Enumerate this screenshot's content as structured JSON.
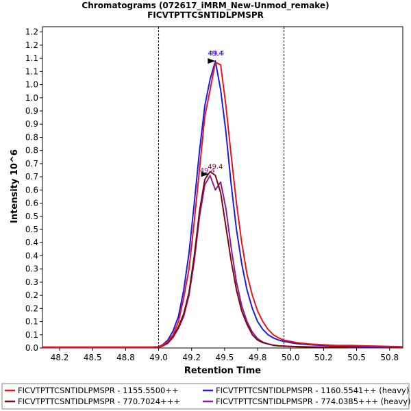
{
  "chart_data": {
    "type": "line",
    "title": "Chromatograms (072617_iMRM_New-Unmod_remake)",
    "subtitle": "FICVTPTTCSNTIDLPMSPR",
    "xlabel": "Retention Time",
    "ylabel": "Intensity 10^6",
    "xlim": [
      48.07,
      50.8
    ],
    "ylim": [
      0,
      1.22
    ],
    "x_ticks": [
      "48.2",
      "48.5",
      "48.8",
      "49.0",
      "49.2",
      "49.5",
      "49.8",
      "50.0",
      "50.2",
      "50.5",
      "50.8"
    ],
    "x_tick_values": [
      48.2,
      48.45,
      48.7,
      48.95,
      49.2,
      49.45,
      49.7,
      49.95,
      50.2,
      50.45,
      50.7
    ],
    "y_ticks": [
      "0.0",
      "0.1",
      "0.1",
      "0.2",
      "0.2",
      "0.3",
      "0.3",
      "0.4",
      "0.4",
      "0.5",
      "0.5",
      "0.6",
      "0.6",
      "0.7",
      "0.7",
      "0.8",
      "0.8",
      "0.9",
      "0.9",
      "1.0",
      "1.0",
      "1.1",
      "1.1",
      "1.2",
      "1.2"
    ],
    "y_tick_values": [
      0,
      0.05,
      0.1,
      0.15,
      0.2,
      0.25,
      0.3,
      0.35,
      0.4,
      0.45,
      0.5,
      0.55,
      0.6,
      0.65,
      0.7,
      0.75,
      0.8,
      0.85,
      0.9,
      0.95,
      1.0,
      1.05,
      1.1,
      1.15,
      1.2
    ],
    "boundaries": [
      48.95,
      49.9
    ],
    "legend_position": "bottom",
    "series": [
      {
        "name": "FICVTPTTCSNTIDLPMSPR - 1155.5500++",
        "color": "#e8141c",
        "x": [
          48.07,
          48.9,
          48.95,
          48.98,
          49.02,
          49.06,
          49.1,
          49.14,
          49.18,
          49.22,
          49.26,
          49.3,
          49.34,
          49.38,
          49.42,
          49.46,
          49.5,
          49.54,
          49.58,
          49.62,
          49.66,
          49.7,
          49.74,
          49.78,
          49.82,
          49.86,
          49.9,
          49.95,
          50.0,
          50.1,
          50.2,
          50.3,
          50.4,
          50.5,
          50.6,
          50.7,
          50.8
        ],
        "y": [
          0.003,
          0.003,
          0.004,
          0.01,
          0.025,
          0.05,
          0.1,
          0.19,
          0.3,
          0.48,
          0.68,
          0.88,
          0.98,
          1.085,
          1.075,
          0.92,
          0.73,
          0.55,
          0.4,
          0.28,
          0.2,
          0.14,
          0.1,
          0.07,
          0.05,
          0.038,
          0.03,
          0.025,
          0.02,
          0.015,
          0.012,
          0.01,
          0.01,
          0.008,
          0.007,
          0.006,
          0.005
        ]
      },
      {
        "name": "FICVTPTTCSNTIDLPMSPR - 1160.5541++ (heavy)",
        "color": "#1c1cdc",
        "x": [
          48.07,
          48.9,
          48.95,
          48.98,
          49.02,
          49.06,
          49.1,
          49.14,
          49.18,
          49.22,
          49.26,
          49.3,
          49.34,
          49.38,
          49.42,
          49.46,
          49.5,
          49.54,
          49.58,
          49.62,
          49.66,
          49.7,
          49.74,
          49.78,
          49.82,
          49.86,
          49.9,
          49.95,
          50.0,
          50.1,
          50.2,
          50.3,
          50.4,
          50.5,
          50.6,
          50.7,
          50.8
        ],
        "y": [
          0.003,
          0.003,
          0.005,
          0.012,
          0.03,
          0.065,
          0.12,
          0.22,
          0.36,
          0.55,
          0.75,
          0.92,
          1.02,
          1.09,
          0.98,
          0.82,
          0.62,
          0.45,
          0.32,
          0.22,
          0.15,
          0.1,
          0.07,
          0.05,
          0.038,
          0.03,
          0.025,
          0.02,
          0.016,
          0.012,
          0.01,
          0.008,
          0.007,
          0.006,
          0.005,
          0.004,
          0.004
        ]
      },
      {
        "name": "FICVTPTTCSNTIDLPMSPR - 770.7024+++",
        "color": "#7a0a0a",
        "x": [
          48.07,
          48.9,
          48.95,
          48.98,
          49.02,
          49.06,
          49.1,
          49.14,
          49.18,
          49.22,
          49.26,
          49.3,
          49.34,
          49.38,
          49.42,
          49.46,
          49.5,
          49.54,
          49.58,
          49.62,
          49.66,
          49.7,
          49.74,
          49.78,
          49.82,
          49.86,
          49.9,
          49.95,
          50.0,
          50.1,
          50.2,
          50.3,
          50.4,
          50.5,
          50.6,
          50.7,
          50.8
        ],
        "y": [
          0.002,
          0.002,
          0.003,
          0.008,
          0.02,
          0.045,
          0.08,
          0.13,
          0.21,
          0.35,
          0.52,
          0.64,
          0.67,
          0.655,
          0.59,
          0.46,
          0.33,
          0.22,
          0.14,
          0.09,
          0.05,
          0.03,
          0.02,
          0.015,
          0.01,
          0.008,
          0.007,
          0.006,
          0.005,
          0.004,
          0.003,
          0.003,
          0.002,
          0.002,
          0.002,
          0.002,
          0.002
        ]
      },
      {
        "name": "FICVTPTTCSNTIDLPMSPR - 774.0385+++ (heavy)",
        "color": "#8a1a9c",
        "x": [
          48.07,
          48.9,
          48.95,
          48.98,
          49.02,
          49.06,
          49.1,
          49.14,
          49.18,
          49.22,
          49.26,
          49.3,
          49.34,
          49.38,
          49.42,
          49.46,
          49.5,
          49.54,
          49.58,
          49.62,
          49.66,
          49.7,
          49.74,
          49.78,
          49.82,
          49.86,
          49.9,
          49.95,
          50.0,
          50.1,
          50.2,
          50.3,
          50.4,
          50.5,
          50.6,
          50.7,
          50.8
        ],
        "y": [
          0.002,
          0.002,
          0.003,
          0.007,
          0.018,
          0.04,
          0.075,
          0.12,
          0.2,
          0.33,
          0.5,
          0.62,
          0.655,
          0.6,
          0.63,
          0.53,
          0.38,
          0.25,
          0.16,
          0.1,
          0.06,
          0.035,
          0.022,
          0.015,
          0.011,
          0.008,
          0.007,
          0.006,
          0.005,
          0.004,
          0.003,
          0.003,
          0.002,
          0.002,
          0.002,
          0.002,
          0.002
        ]
      }
    ],
    "annotations": [
      {
        "text": "49.4",
        "x": 49.39,
        "y": 1.1,
        "color": "#8a1a9c"
      },
      {
        "text": "49.4",
        "x": 49.38,
        "y": 1.1,
        "color": "#1c1cdc"
      },
      {
        "text": "49.4",
        "x": 49.38,
        "y": 0.67,
        "color": "#7a0a0a"
      },
      {
        "text": "49.4",
        "x": 49.32,
        "y": 0.655,
        "color": "#8a1a9c"
      }
    ]
  }
}
